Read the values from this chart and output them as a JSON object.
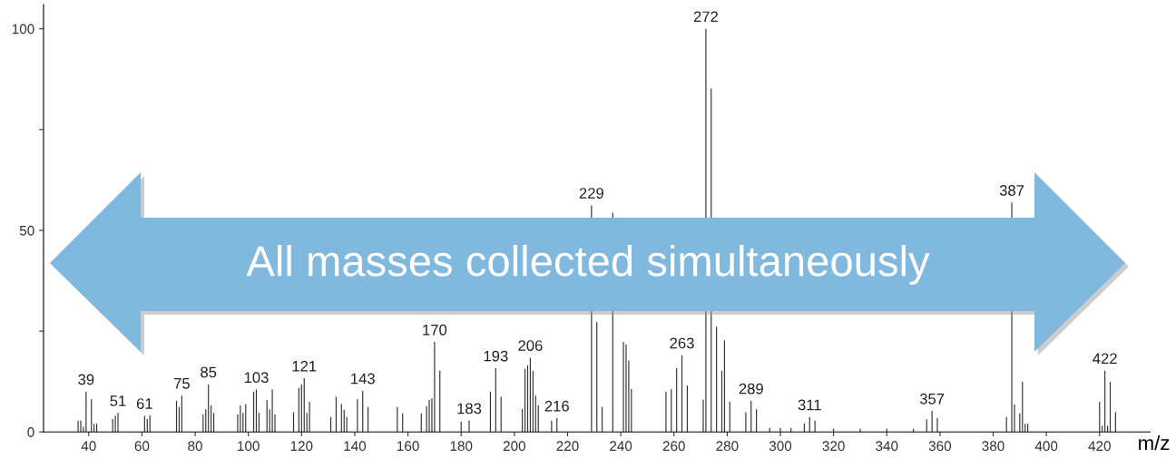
{
  "chart_data": {
    "type": "bar",
    "xlabel": "m/z",
    "color": "#333333",
    "x": [
      36,
      37,
      38,
      39,
      41,
      42,
      43,
      49,
      50,
      51,
      61,
      62,
      63,
      73,
      74,
      75,
      83,
      84,
      85,
      86,
      87,
      96,
      97,
      98,
      99,
      102,
      103,
      104,
      107,
      108,
      109,
      110,
      117,
      119,
      120,
      121,
      122,
      123,
      131,
      133,
      135,
      136,
      137,
      141,
      143,
      145,
      156,
      158,
      165,
      167,
      168,
      169,
      170,
      172,
      180,
      183,
      191,
      193,
      195,
      203,
      204,
      205,
      206,
      207,
      208,
      209,
      214,
      216,
      227,
      228,
      229,
      231,
      233,
      236,
      237,
      240,
      241,
      242,
      243,
      244,
      257,
      259,
      261,
      263,
      265,
      270,
      271,
      272,
      273,
      274,
      275,
      276,
      277,
      278,
      279,
      281,
      287,
      289,
      291,
      296,
      300,
      304,
      309,
      311,
      313,
      320,
      330,
      340,
      350,
      355,
      357,
      359,
      385,
      386,
      387,
      388,
      389,
      390,
      391,
      392,
      393,
      420,
      421,
      422,
      423,
      424,
      426
    ],
    "values": [
      2.8,
      2.8,
      1.3,
      10.0,
      8.1,
      2,
      2,
      3.2,
      4,
      4.7,
      4.0,
      3.2,
      4.1,
      7.7,
      6.2,
      9.0,
      4.3,
      5.6,
      11.8,
      6.6,
      4.7,
      4.3,
      6.6,
      4.7,
      6.9,
      10,
      10.5,
      4.7,
      7.9,
      5.6,
      10.5,
      4.3,
      4.9,
      10.9,
      11.8,
      13.3,
      4.7,
      7.5,
      3.7,
      8.7,
      6.9,
      5.5,
      3.7,
      8.1,
      10.2,
      6.2,
      6.2,
      4.6,
      4.6,
      6.4,
      7.9,
      8.3,
      22.3,
      15.2,
      2.5,
      2.8,
      10,
      15.8,
      8.7,
      5.7,
      15.6,
      16.5,
      18.4,
      15.2,
      9.0,
      6.6,
      2.8,
      3.4,
      null,
      null,
      56.2,
      27.2,
      6.2,
      null,
      54.4,
      null,
      22.3,
      21.7,
      17.7,
      10.6,
      10,
      10.6,
      15.8,
      19,
      11.5,
      null,
      8,
      100,
      null,
      85.2,
      null,
      26.1,
      null,
      15.2,
      22.7,
      7.5,
      4.9,
      7.7,
      5.6,
      1,
      1,
      1,
      2.1,
      3.7,
      2.8,
      0.8,
      0.8,
      0.8,
      0.8,
      3.1,
      5.2,
      3.4,
      3.7,
      null,
      56.9,
      6.8,
      null,
      4.6,
      12.4,
      2,
      2,
      7.5,
      1.5,
      15.2,
      1.5,
      12.4,
      4.9
    ],
    "xlim": [
      23,
      439
    ],
    "xticks": [
      40,
      60,
      80,
      100,
      120,
      140,
      160,
      180,
      200,
      220,
      240,
      260,
      280,
      300,
      320,
      340,
      360,
      380,
      400,
      420
    ],
    "ylim": [
      0,
      106
    ],
    "yticks": [
      0,
      {
        "value": 25,
        "label": null
      },
      50,
      {
        "value": 75,
        "label": null
      },
      100
    ],
    "grid": false,
    "annotations": [
      "All masses collected simultaneously",
      {
        "text": "39",
        "x": 39,
        "y": 10.0
      },
      {
        "text": "51",
        "x": 51,
        "y": 4.7
      },
      {
        "text": "61",
        "x": 61,
        "y": 4.0
      },
      {
        "text": "75",
        "x": 75,
        "y": 9.0
      },
      {
        "text": "85",
        "x": 85,
        "y": 11.8
      },
      {
        "text": "103",
        "x": 103,
        "y": 10.5
      },
      {
        "text": "121",
        "x": 121,
        "y": 13.3
      },
      {
        "text": "143",
        "x": 143,
        "y": 10.2
      },
      {
        "text": "170",
        "x": 170,
        "y": 22.3
      },
      {
        "text": "183",
        "x": 183,
        "y": 2.8
      },
      {
        "text": "193",
        "x": 193,
        "y": 15.8
      },
      {
        "text": "206",
        "x": 206,
        "y": 18.4
      },
      {
        "text": "216",
        "x": 216,
        "y": 3.4
      },
      {
        "text": "229",
        "x": 229,
        "y": 56.2
      },
      {
        "text": "263",
        "x": 263,
        "y": 19
      },
      {
        "text": "272",
        "x": 272,
        "y": 100
      },
      {
        "text": "289",
        "x": 289,
        "y": 7.7
      },
      {
        "text": "311",
        "x": 311,
        "y": 3.7
      },
      {
        "text": "357",
        "x": 357,
        "y": 5.2
      },
      {
        "text": "387",
        "x": 387,
        "y": 56.9
      },
      {
        "text": "422",
        "x": 422,
        "y": 15.2
      }
    ]
  }
}
